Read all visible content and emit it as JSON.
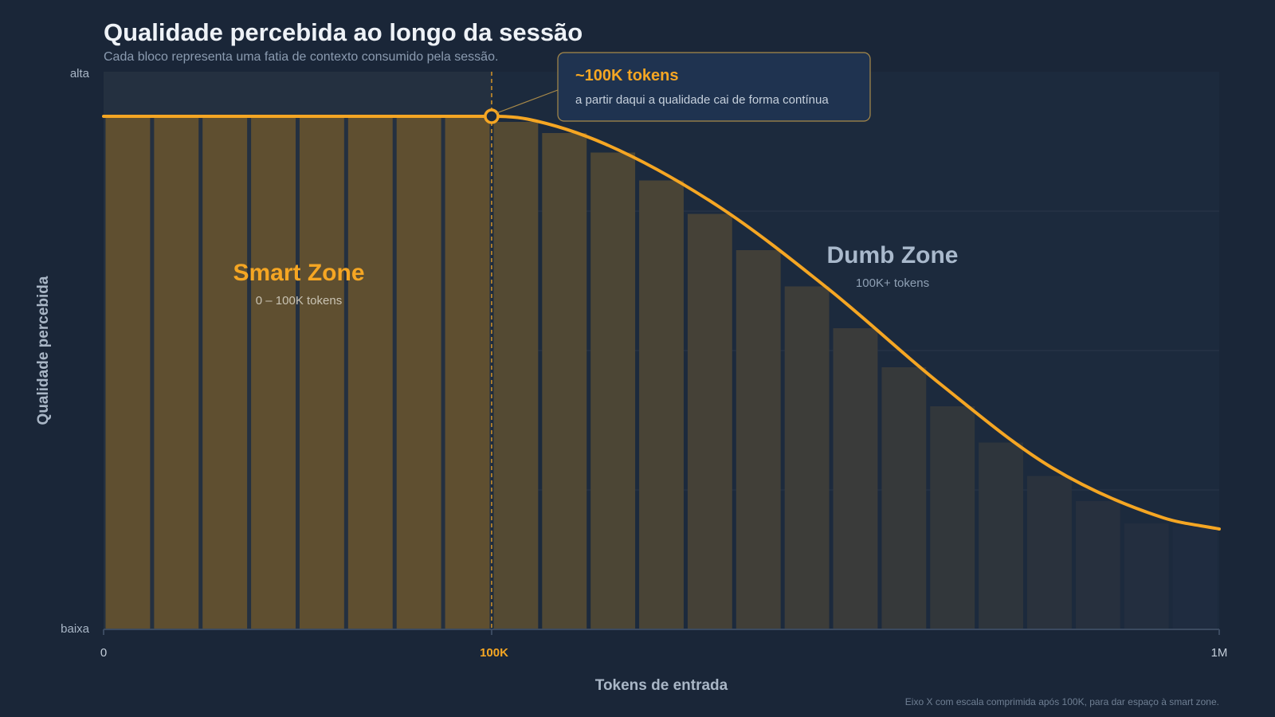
{
  "chart_data": {
    "type": "bar",
    "title": "Qualidade percebida ao longo da sessão",
    "subtitle": "Cada bloco representa uma fatia de contexto consumido pela sessão.",
    "xlabel": "Tokens de entrada",
    "ylabel": "Qualidade percebida",
    "x_ticks": [
      "0",
      "100K",
      "1M"
    ],
    "y_ticks": [
      "alta",
      "baixa"
    ],
    "ylim": [
      0,
      100
    ],
    "grid": true,
    "x_scale_note": "compressed after 100K",
    "values": [
      92,
      92,
      92,
      92,
      92,
      92,
      92,
      92,
      91,
      89,
      85.5,
      80.5,
      74.5,
      68,
      61.5,
      54,
      47,
      40,
      33.5,
      27.5,
      23,
      19,
      18.5
    ],
    "smart_bar_count": 8,
    "curve": {
      "x_fraction": [
        0.0,
        0.35,
        0.38,
        0.45,
        0.55,
        0.65,
        0.75,
        0.85,
        0.95,
        1.0
      ],
      "y": [
        92,
        92,
        91.5,
        87,
        76,
        61,
        44,
        29,
        20,
        18
      ]
    },
    "zones": [
      {
        "name": "Smart Zone",
        "range": "0 – 100K tokens"
      },
      {
        "name": "Dumb Zone",
        "range": "100K+ tokens"
      }
    ],
    "annotation": {
      "title": "~100K tokens",
      "text": "a partir daqui a qualidade cai de forma contínua"
    },
    "footnote": "Eixo X com escala comprimida após 100K, para dar espaço à smart zone.",
    "colors": {
      "background": "#1a2638",
      "accent": "#f5a623",
      "smart_bar": "#5f4f30",
      "dumb_bar_start": "#544a33",
      "dumb_bar_end": "#1f2c40",
      "grid": "#2a3749",
      "axis": "#3b4a60"
    }
  }
}
